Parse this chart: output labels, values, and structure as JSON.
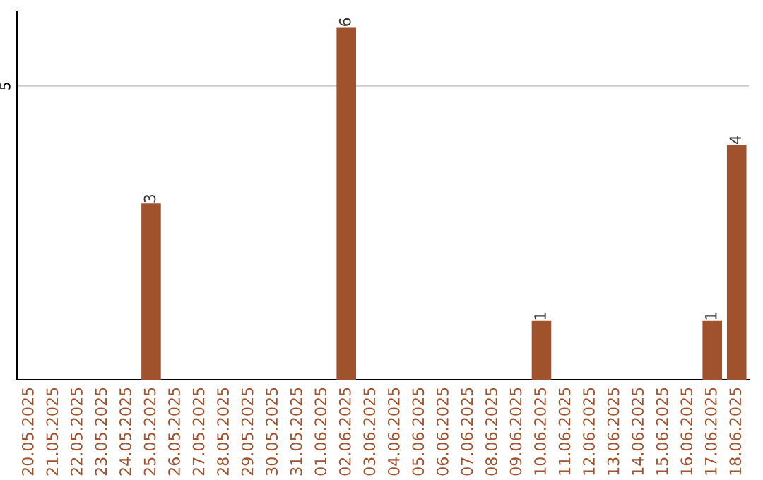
{
  "chart_data": {
    "type": "bar",
    "categories": [
      "20.05.2025",
      "21.05.2025",
      "22.05.2025",
      "23.05.2025",
      "24.05.2025",
      "25.05.2025",
      "26.05.2025",
      "27.05.2025",
      "28.05.2025",
      "29.05.2025",
      "30.05.2025",
      "31.05.2025",
      "01.06.2025",
      "02.06.2025",
      "03.06.2025",
      "04.06.2025",
      "05.06.2025",
      "06.06.2025",
      "07.06.2025",
      "08.06.2025",
      "09.06.2025",
      "10.06.2025",
      "11.06.2025",
      "12.06.2025",
      "13.06.2025",
      "14.06.2025",
      "15.06.2025",
      "16.06.2025",
      "17.06.2025",
      "18.06.2025"
    ],
    "values": [
      0,
      0,
      0,
      0,
      0,
      3,
      0,
      0,
      0,
      0,
      0,
      0,
      0,
      6,
      0,
      0,
      0,
      0,
      0,
      0,
      0,
      1,
      0,
      0,
      0,
      0,
      0,
      0,
      1,
      4
    ],
    "color": "#a0522d",
    "ylim": [
      0,
      6.27
    ],
    "yticks": [
      5
    ],
    "grid": "y",
    "value_labels": [
      null,
      null,
      null,
      null,
      null,
      "3",
      null,
      null,
      null,
      null,
      null,
      null,
      null,
      "6",
      null,
      null,
      null,
      null,
      null,
      null,
      null,
      "1",
      null,
      null,
      null,
      null,
      null,
      null,
      "1",
      "4"
    ]
  }
}
